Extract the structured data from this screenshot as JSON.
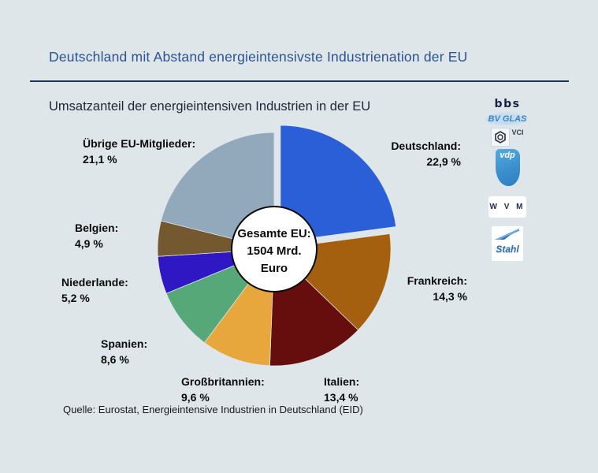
{
  "header": {
    "title": "Deutschland mit Abstand energieintensivste Industrienation der EU",
    "subtitle": "Umsatzanteil der energieintensiven Industrien in der EU"
  },
  "source": "Quelle: Eurostat, Energieintensive Industrien in Deutschland (EID)",
  "logos": [
    {
      "name": "bbs",
      "label": "bbs"
    },
    {
      "name": "bv-glas",
      "label": "BV GLAS"
    },
    {
      "name": "vci",
      "label": "VCI"
    },
    {
      "name": "vdp",
      "label": "vdp"
    },
    {
      "name": "wvm",
      "label": "W V M"
    },
    {
      "name": "stahl",
      "label": "Stahl"
    }
  ],
  "chart_data": {
    "type": "pie",
    "title": "Umsatzanteil der energieintensiven Industrien in der EU",
    "unit": "%",
    "direction": "clockwise",
    "start_angle_deg": 0,
    "donut_hole": true,
    "center_label": {
      "line1": "Gesamte EU:",
      "line2": "1504 Mrd.",
      "line3": "Euro"
    },
    "slices": [
      {
        "label": "Deutschland",
        "display": "Deutschland:",
        "pct_text": "22,9 %",
        "value": 22.9,
        "color": "#2b5fd7",
        "exploded": true
      },
      {
        "label": "Frankreich",
        "display": "Frankreich:",
        "pct_text": "14,3 %",
        "value": 14.3,
        "color": "#a4600f",
        "exploded": false
      },
      {
        "label": "Italien",
        "display": "Italien:",
        "pct_text": "13,4 %",
        "value": 13.4,
        "color": "#660d0d",
        "exploded": false
      },
      {
        "label": "Großbritannien",
        "display": "Großbritannien:",
        "pct_text": "9,6 %",
        "value": 9.6,
        "color": "#e7a73c",
        "exploded": false
      },
      {
        "label": "Spanien",
        "display": "Spanien:",
        "pct_text": "8,6 %",
        "value": 8.6,
        "color": "#57a878",
        "exploded": false
      },
      {
        "label": "Niederlande",
        "display": "Niederlande:",
        "pct_text": "5,2 %",
        "value": 5.2,
        "color": "#2f17c4",
        "exploded": false
      },
      {
        "label": "Belgien",
        "display": "Belgien:",
        "pct_text": "4,9 %",
        "value": 4.9,
        "color": "#745930",
        "exploded": false
      },
      {
        "label": "Übrige EU-Mitglieder",
        "display": "Übrige EU-Mitglieder:",
        "pct_text": "21,1 %",
        "value": 21.1,
        "color": "#92a8bb",
        "exploded": false
      }
    ]
  }
}
